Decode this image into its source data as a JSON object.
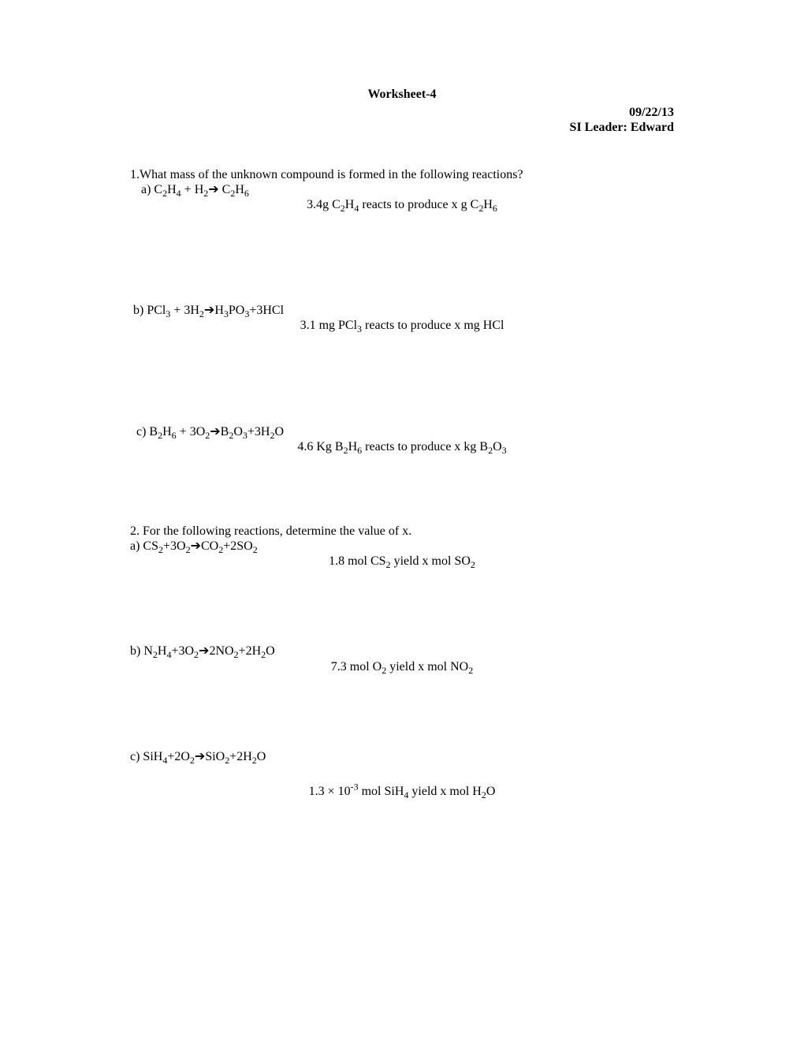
{
  "title": "Worksheet-4",
  "header": {
    "date": "09/22/13",
    "leader": "SI Leader: Edward"
  },
  "q1": {
    "intro": "1.What mass of the unknown compound is formed in the following reactions?",
    "a_prefix": "a) C",
    "a_sub1": "2",
    "a_h1": "H",
    "a_sub2": "4",
    "a_plus": " + H",
    "a_sub3": "2",
    "a_arrow": "➔",
    "a_c2": " C",
    "a_sub4": "2",
    "a_h2": "H",
    "a_sub5": "6",
    "a_text1": "3.4g C",
    "a_text_sub1": "2",
    "a_text2": "H",
    "a_text_sub2": "4",
    "a_text3": " reacts to produce x g C",
    "a_text_sub3": "2",
    "a_text4": "H",
    "a_text_sub4": "6",
    "b_prefix": "b) PCl",
    "b_sub1": "3",
    "b_plus": " + 3H",
    "b_sub2": "2",
    "b_arrow": "➔",
    "b_h3po": "H",
    "b_sub3": "3",
    "b_po": "PO",
    "b_sub4": "3",
    "b_hcl": "+3HCl",
    "b_text1": "3.1 mg PCl",
    "b_text_sub1": "3",
    "b_text2": " reacts to produce x mg HCl",
    "c_prefix": "c) B",
    "c_sub1": "2",
    "c_h1": "H",
    "c_sub2": "6",
    "c_plus": " + 3O",
    "c_sub3": "2",
    "c_arrow": "➔",
    "c_b2": "B",
    "c_sub4": "2",
    "c_o3": "O",
    "c_sub5": "3",
    "c_h2o": "+3H",
    "c_sub6": "2",
    "c_o": "O",
    "c_text1": "4.6 Kg B",
    "c_text_sub1": "2",
    "c_text2": "H",
    "c_text_sub2": "6",
    "c_text3": " reacts to produce x kg B",
    "c_text_sub3": "2",
    "c_text4": "O",
    "c_text_sub4": "3"
  },
  "q2": {
    "intro": "2. For the following reactions, determine the value of x.",
    "a_prefix": "a) CS",
    "a_sub1": "2",
    "a_plus": "+3O",
    "a_sub2": "2",
    "a_arrow": "➔",
    "a_co": "CO",
    "a_sub3": "2",
    "a_so": "+2SO",
    "a_sub4": "2",
    "a_text1": "1.8 mol CS",
    "a_text_sub1": "2",
    "a_text2": " yield x mol SO",
    "a_text_sub2": "2",
    "b_prefix": "b) N",
    "b_sub1": "2",
    "b_h": "H",
    "b_sub2": "4",
    "b_plus": "+3O",
    "b_sub3": "2",
    "b_arrow": "➔",
    "b_no": "2NO",
    "b_sub4": "2",
    "b_h2o": "+2H",
    "b_sub5": "2",
    "b_o": "O",
    "b_text1": "7.3 mol O",
    "b_text_sub1": "2",
    "b_text2": " yield x mol NO",
    "b_text_sub2": "2",
    "c_prefix": "c) SiH",
    "c_sub1": "4",
    "c_plus": "+2O",
    "c_sub2": "2",
    "c_arrow": "➔",
    "c_sio": "SiO",
    "c_sub3": "2",
    "c_h2o": "+2H",
    "c_sub4": "2",
    "c_o": "O",
    "c_text1": "1.3 × 10",
    "c_text_sup": "-3",
    "c_text2": " mol SiH",
    "c_text_sub1": "4",
    "c_text3": " yield x mol H",
    "c_text_sub2": "2",
    "c_text4": "O"
  }
}
